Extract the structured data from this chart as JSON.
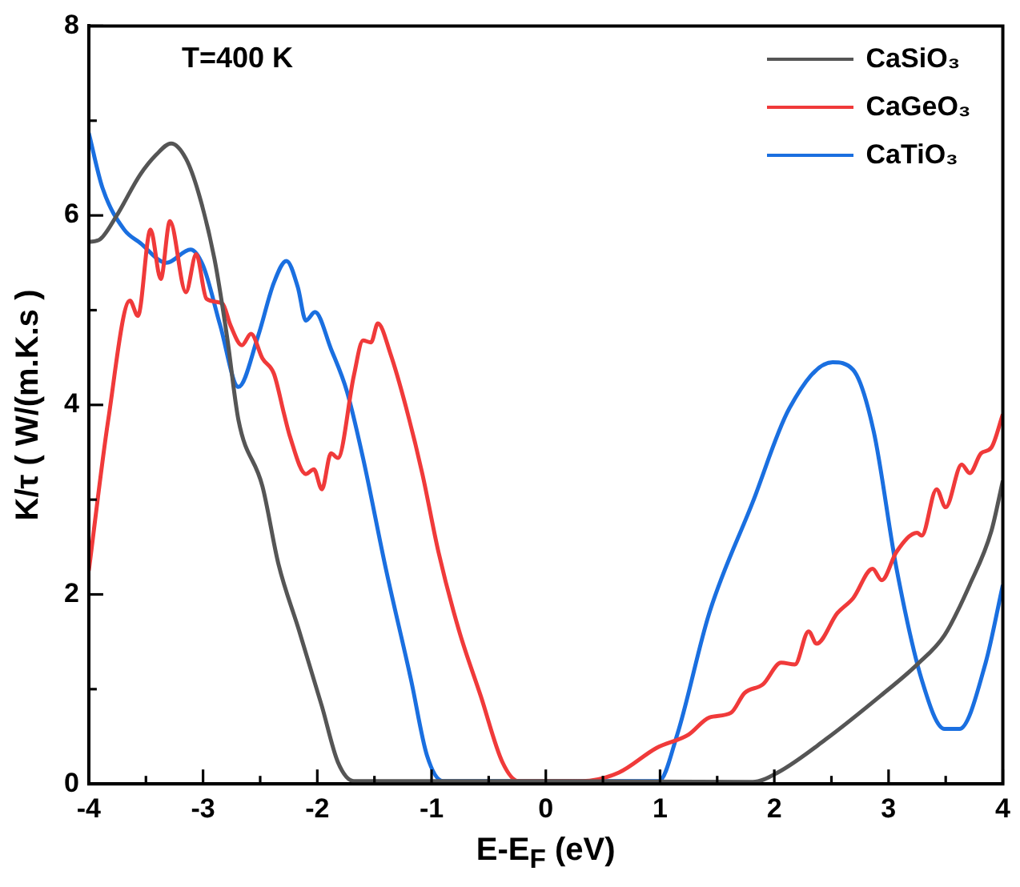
{
  "chart_data": {
    "type": "line",
    "xlabel": "E-E$_{F}$ (eV)",
    "ylabel": "K/τ ( W/(m.K.s )",
    "annotations": [
      "T=400 K"
    ],
    "xlim": [
      -4,
      4
    ],
    "ylim": [
      0,
      8
    ],
    "xticks": [
      -4,
      {
        "value": -3.5,
        "label": null
      },
      -3,
      {
        "value": -2.5,
        "label": null
      },
      -2,
      {
        "value": -1.5,
        "label": null
      },
      -1,
      {
        "value": -0.5,
        "label": null
      },
      0,
      {
        "value": 0.5,
        "label": null
      },
      1,
      {
        "value": 1.5,
        "label": null
      },
      2,
      {
        "value": 2.5,
        "label": null
      },
      3,
      {
        "value": 3.5,
        "label": null
      },
      4
    ],
    "yticks": [
      0,
      {
        "value": 1,
        "label": null
      },
      2,
      {
        "value": 3,
        "label": null
      },
      4,
      {
        "value": 5,
        "label": null
      },
      6,
      {
        "value": 7,
        "label": null
      },
      8
    ],
    "grid": false,
    "legend": "top right",
    "marker": "none",
    "line_style": "solid",
    "series": [
      {
        "name": "CaSiO₃",
        "color": "#555555",
        "x": [
          -4,
          -3.9,
          -3.76,
          -3.55,
          -3.41,
          -3.28,
          -3.15,
          -3.04,
          -2.9,
          -2.79,
          -2.69,
          -2.48,
          -2.34,
          -2.16,
          -1.96,
          -1.82,
          -1.68,
          0,
          1.81,
          2.03,
          2.45,
          2.93,
          3.25,
          3.49,
          3.71,
          3.9,
          4
        ],
        "values": [
          5.72,
          5.75,
          5.99,
          6.43,
          6.64,
          6.76,
          6.6,
          6.24,
          5.54,
          4.72,
          3.84,
          3.14,
          2.32,
          1.62,
          0.82,
          0.23,
          0.03,
          0.03,
          0.02,
          0.12,
          0.47,
          0.93,
          1.26,
          1.57,
          2.1,
          2.67,
          3.2
        ]
      },
      {
        "name": "CaGeO₃",
        "color": "#f03a3a",
        "x": [
          -4,
          -3.83,
          -3.64,
          -3.57,
          -3.46,
          -3.37,
          -3.29,
          -3.15,
          -3.06,
          -2.97,
          -2.83,
          -2.76,
          -2.66,
          -2.58,
          -2.48,
          -2.38,
          -2.29,
          -2.24,
          -2.1,
          -2.03,
          -1.96,
          -1.88,
          -1.82,
          -1.68,
          -1.6,
          -1.53,
          -1.47,
          -1.36,
          -1.22,
          -1.08,
          -0.94,
          -0.76,
          -0.57,
          -0.38,
          -0.24,
          0.32,
          0.64,
          0.97,
          1.25,
          1.43,
          1.62,
          1.74,
          1.9,
          2.06,
          2.18,
          2.3,
          2.37,
          2.55,
          2.69,
          2.86,
          2.94,
          3.07,
          3.25,
          3.29,
          3.42,
          3.5,
          3.64,
          3.71,
          3.81,
          3.9,
          4
        ],
        "values": [
          2.25,
          3.84,
          5.1,
          4.94,
          5.85,
          5.33,
          5.94,
          5.19,
          5.59,
          5.12,
          5.07,
          4.84,
          4.63,
          4.75,
          4.49,
          4.33,
          3.9,
          3.67,
          3.27,
          3.32,
          3.11,
          3.49,
          3.44,
          4.31,
          4.68,
          4.66,
          4.86,
          4.54,
          3.96,
          3.27,
          2.45,
          1.62,
          0.93,
          0.23,
          0.03,
          0.03,
          0.12,
          0.38,
          0.52,
          0.7,
          0.75,
          0.96,
          1.05,
          1.28,
          1.26,
          1.61,
          1.48,
          1.8,
          1.96,
          2.27,
          2.15,
          2.45,
          2.65,
          2.62,
          3.11,
          2.92,
          3.37,
          3.28,
          3.49,
          3.55,
          3.9
        ]
      },
      {
        "name": "CaTiO₃",
        "color": "#1a6fe0",
        "x": [
          -4,
          -3.88,
          -3.69,
          -3.55,
          -3.32,
          -3.11,
          -3.0,
          -2.85,
          -2.69,
          -2.52,
          -2.38,
          -2.27,
          -2.17,
          -2.1,
          -2.02,
          -1.88,
          -1.74,
          -1.6,
          -1.4,
          -1.18,
          -1.04,
          -0.9,
          0.99,
          1.15,
          1.43,
          1.81,
          2.13,
          2.51,
          2.69,
          2.87,
          3.07,
          3.29,
          3.49,
          3.62,
          3.85,
          4
        ],
        "values": [
          6.87,
          6.29,
          5.85,
          5.71,
          5.5,
          5.64,
          5.47,
          4.84,
          4.19,
          4.72,
          5.29,
          5.52,
          5.24,
          4.89,
          4.98,
          4.59,
          4.14,
          3.44,
          2.27,
          1.1,
          0.3,
          0.03,
          0.03,
          0.52,
          1.8,
          2.97,
          3.96,
          4.45,
          4.37,
          3.72,
          2.27,
          1.1,
          0.58,
          0.58,
          1.28,
          2.1
        ]
      }
    ]
  }
}
